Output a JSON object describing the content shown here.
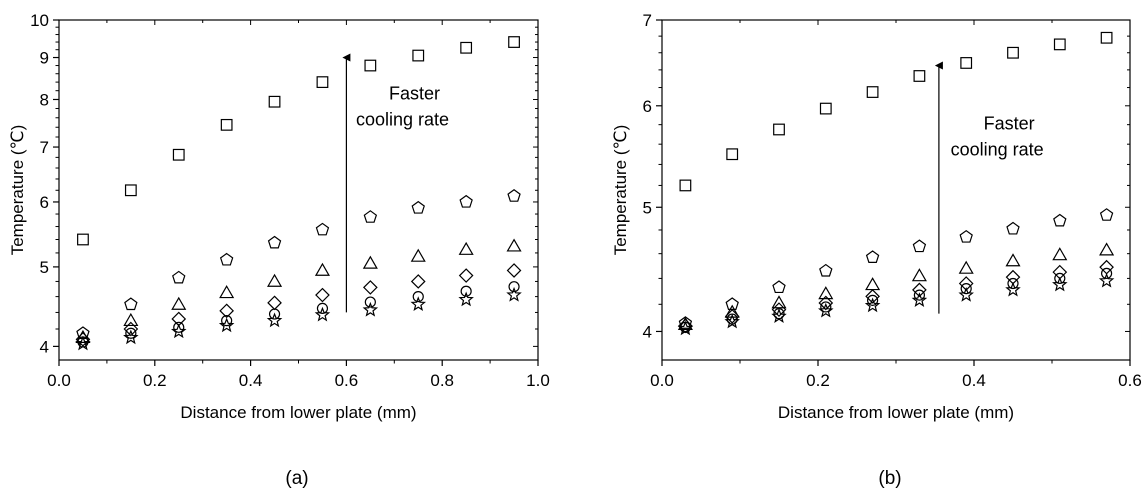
{
  "figure": {
    "panel_captions": [
      "(a)",
      "(b)"
    ]
  },
  "chart_data": [
    {
      "type": "scatter",
      "panel": "(a)",
      "xlabel": "Distance from lower plate (mm)",
      "ylabel": "Temperature (℃)",
      "xlim": [
        0.0,
        1.0
      ],
      "ylim": [
        3.85,
        10.0
      ],
      "y_scale": "log",
      "x_ticks": [
        "0.0",
        "0.2",
        "0.4",
        "0.6",
        "0.8",
        "1.0"
      ],
      "y_ticks": [
        {
          "value": 4,
          "label": "4"
        },
        {
          "value": 5,
          "label": "5"
        },
        {
          "value": 6,
          "label": "6"
        },
        {
          "value": 7,
          "label": "7"
        },
        {
          "value": 8,
          "label": "8"
        },
        {
          "value": 9,
          "label": "9"
        },
        {
          "value": 10,
          "label": "10"
        }
      ],
      "annotation": {
        "lines": [
          "Faster",
          "cooling rate"
        ]
      },
      "x": [
        0.05,
        0.15,
        0.25,
        0.35,
        0.45,
        0.55,
        0.65,
        0.75,
        0.85,
        0.95
      ],
      "series": [
        {
          "marker": "square",
          "values": [
            5.4,
            6.2,
            6.85,
            7.45,
            7.95,
            8.4,
            8.8,
            9.05,
            9.25,
            9.4
          ]
        },
        {
          "marker": "pentagon",
          "values": [
            4.15,
            4.5,
            4.85,
            5.1,
            5.35,
            5.55,
            5.75,
            5.9,
            6.0,
            6.1
          ]
        },
        {
          "marker": "triangle",
          "values": [
            4.1,
            4.3,
            4.5,
            4.65,
            4.8,
            4.95,
            5.05,
            5.15,
            5.25,
            5.3
          ]
        },
        {
          "marker": "diamond",
          "values": [
            4.08,
            4.2,
            4.32,
            4.42,
            4.52,
            4.62,
            4.72,
            4.8,
            4.88,
            4.95
          ]
        },
        {
          "marker": "circle",
          "values": [
            4.05,
            4.15,
            4.22,
            4.3,
            4.38,
            4.45,
            4.53,
            4.6,
            4.67,
            4.73
          ]
        },
        {
          "marker": "star",
          "values": [
            4.03,
            4.1,
            4.17,
            4.24,
            4.3,
            4.37,
            4.43,
            4.5,
            4.56,
            4.62
          ]
        }
      ]
    },
    {
      "type": "scatter",
      "panel": "(b)",
      "xlabel": "Distance from lower plate (mm)",
      "ylabel": "Temperature (℃)",
      "xlim": [
        0.0,
        0.6
      ],
      "ylim": [
        3.8,
        7.0
      ],
      "y_scale": "log",
      "x_ticks": [
        "0.0",
        "0.2",
        "0.4",
        "0.6"
      ],
      "y_ticks": [
        {
          "value": 4,
          "label": "4"
        },
        {
          "value": 5,
          "label": "5"
        },
        {
          "value": 6,
          "label": "6"
        },
        {
          "value": 7,
          "label": "7"
        }
      ],
      "annotation": {
        "lines": [
          "Faster",
          "cooling rate"
        ]
      },
      "x": [
        0.03,
        0.09,
        0.15,
        0.21,
        0.27,
        0.33,
        0.39,
        0.45,
        0.51,
        0.57
      ],
      "series": [
        {
          "marker": "square",
          "values": [
            5.2,
            5.5,
            5.75,
            5.97,
            6.15,
            6.33,
            6.48,
            6.6,
            6.7,
            6.78
          ]
        },
        {
          "marker": "pentagon",
          "values": [
            4.06,
            4.2,
            4.33,
            4.46,
            4.57,
            4.66,
            4.74,
            4.81,
            4.88,
            4.93
          ]
        },
        {
          "marker": "triangle",
          "values": [
            4.05,
            4.14,
            4.21,
            4.28,
            4.35,
            4.42,
            4.48,
            4.54,
            4.59,
            4.63
          ]
        },
        {
          "marker": "diamond",
          "values": [
            4.04,
            4.11,
            4.16,
            4.21,
            4.26,
            4.31,
            4.36,
            4.41,
            4.45,
            4.49
          ]
        },
        {
          "marker": "circle",
          "values": [
            4.03,
            4.09,
            4.13,
            4.18,
            4.23,
            4.27,
            4.32,
            4.36,
            4.4,
            4.44
          ]
        },
        {
          "marker": "star",
          "values": [
            4.02,
            4.07,
            4.11,
            4.15,
            4.19,
            4.23,
            4.27,
            4.31,
            4.35,
            4.38
          ]
        }
      ]
    }
  ]
}
